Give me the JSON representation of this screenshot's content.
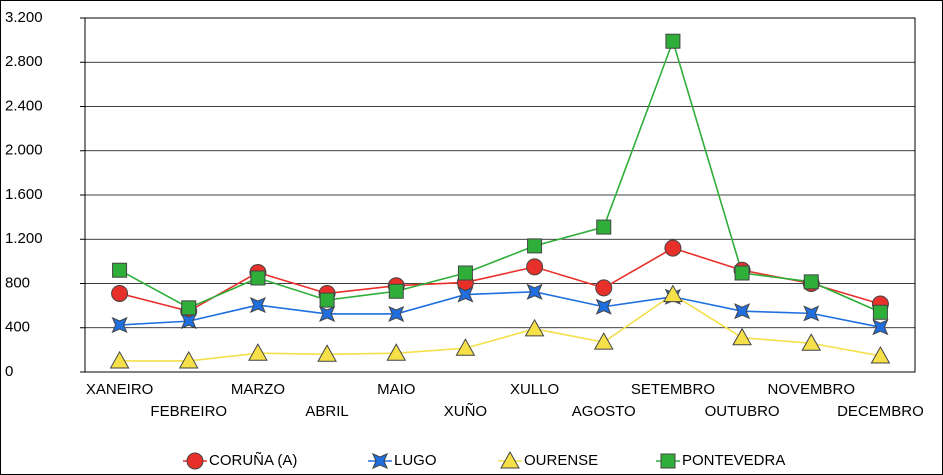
{
  "chart_data": {
    "type": "line",
    "categories": [
      "XANEIRO",
      "FEBREIRO",
      "MARZO",
      "ABRIL",
      "MAIO",
      "XUÑO",
      "XULLO",
      "AGOSTO",
      "SETEMBRO",
      "OUTUBRO",
      "NOVEMBRO",
      "DECEMBRO"
    ],
    "series": [
      {
        "name": "CORUÑA (A)",
        "color": "#e8302a",
        "marker": "circle",
        "values": [
          710,
          550,
          900,
          710,
          780,
          810,
          950,
          760,
          1120,
          920,
          800,
          615
        ]
      },
      {
        "name": "LUGO",
        "color": "#1f6fe0",
        "marker": "star",
        "values": [
          425,
          460,
          605,
          525,
          525,
          700,
          725,
          590,
          680,
          550,
          530,
          405
        ]
      },
      {
        "name": "OURENSE",
        "color": "#f5e04a",
        "marker": "triangle",
        "values": [
          100,
          100,
          170,
          160,
          170,
          215,
          390,
          270,
          700,
          310,
          260,
          145
        ]
      },
      {
        "name": "PONTEVEDRA",
        "color": "#2fae3a",
        "marker": "square",
        "values": [
          920,
          580,
          850,
          650,
          730,
          895,
          1140,
          1310,
          2990,
          895,
          815,
          540
        ]
      }
    ],
    "ylim": [
      0,
      3200
    ],
    "yticks": [
      0,
      400,
      800,
      {
        "value": 1200,
        "label": "1.200"
      },
      {
        "value": 1600,
        "label": "1.600"
      },
      {
        "value": 2000,
        "label": "2.000"
      },
      {
        "value": 2400,
        "label": "2.400"
      },
      {
        "value": 2800,
        "label": "2.800"
      },
      {
        "value": 3200,
        "label": "3.200"
      }
    ],
    "grid": true
  }
}
